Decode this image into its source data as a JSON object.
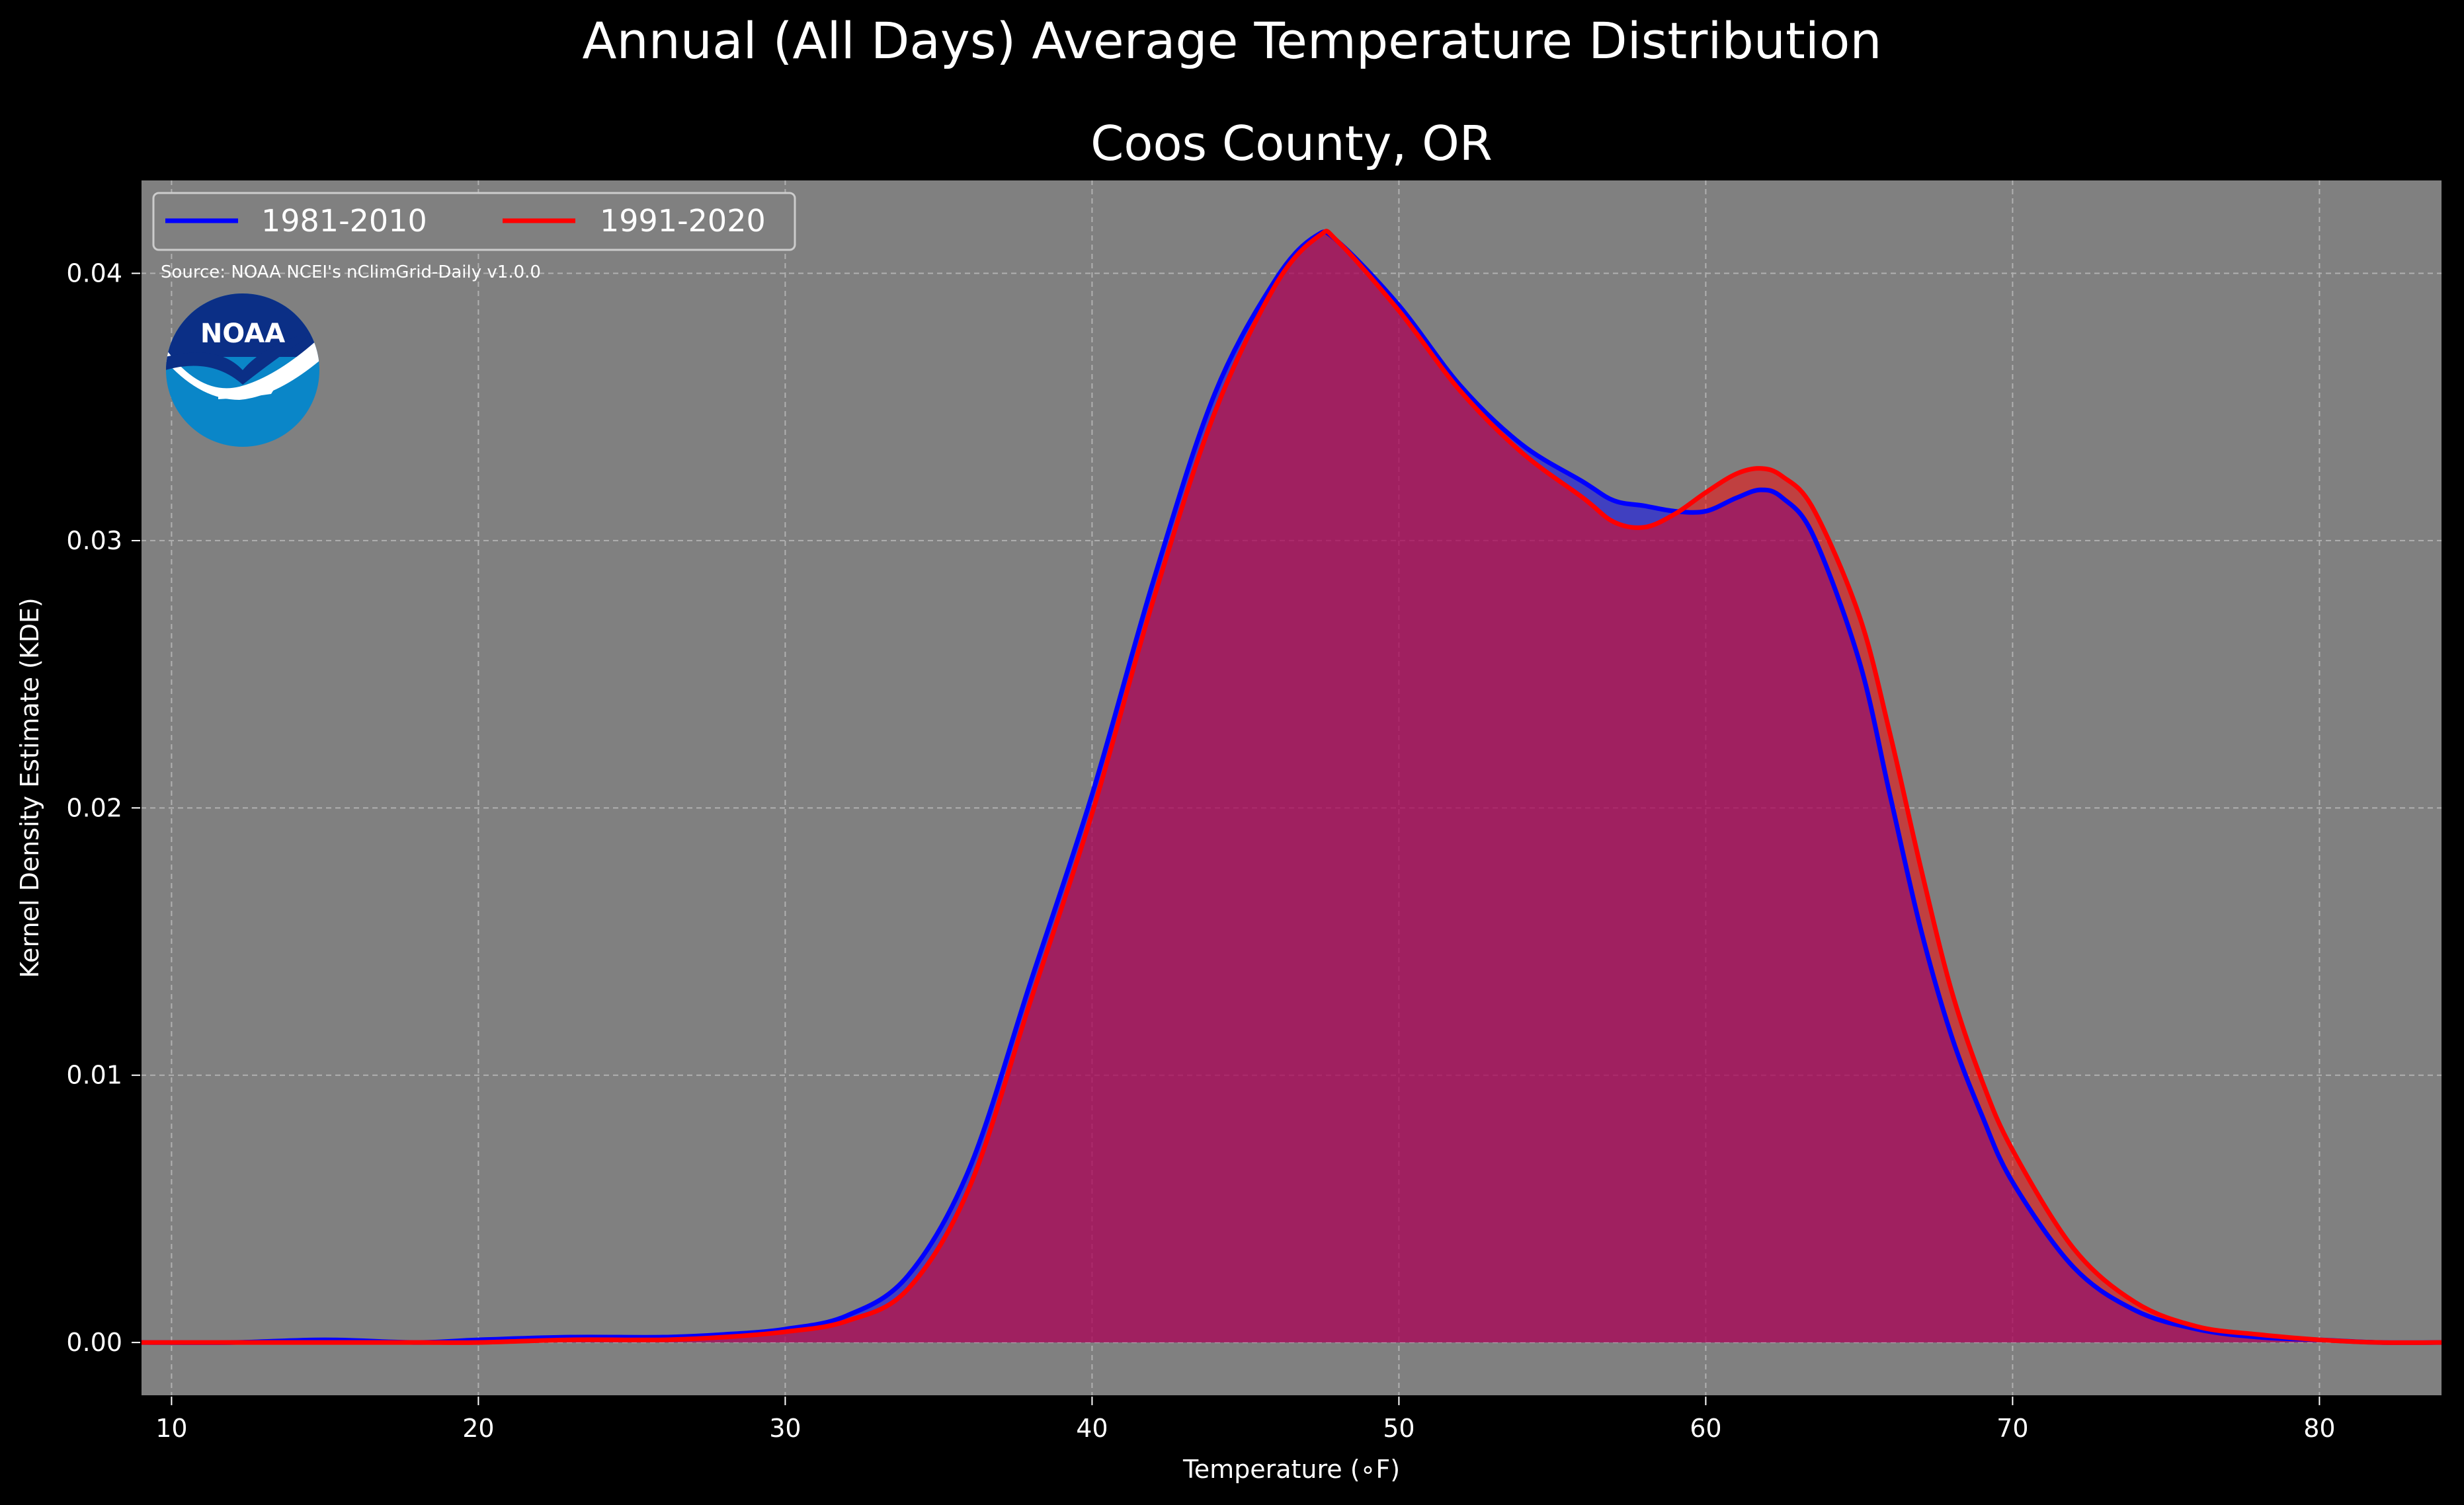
{
  "chart_data": {
    "type": "area",
    "title": "Annual (All Days) Average Temperature Distribution",
    "subtitle": "Coos County, OR",
    "xlabel": "Temperature (∘F)",
    "ylabel": "Kernel Density Estimate (KDE)",
    "xlim": [
      9,
      84
    ],
    "ylim": [
      -0.002,
      0.0435
    ],
    "xticks": [
      10,
      20,
      30,
      40,
      50,
      60,
      70,
      80
    ],
    "yticks": [
      0.0,
      0.01,
      0.02,
      0.03,
      0.04
    ],
    "ytick_labels": [
      "0.00",
      "0.01",
      "0.02",
      "0.03",
      "0.04"
    ],
    "grid": true,
    "legend_position": "top-left",
    "annotation": "Source: NOAA NCEI's nClimGrid-Daily v1.0.0",
    "logo_text": "NOAA",
    "series": [
      {
        "name": "1981-2010",
        "color": "#0000ff",
        "fill": "#0000ff",
        "x": [
          9,
          12,
          15,
          18,
          20,
          23,
          26,
          28,
          30,
          32,
          34,
          36,
          38,
          40,
          42,
          44,
          46,
          47.3,
          48,
          50,
          52,
          54,
          56,
          57,
          58,
          59,
          60,
          61,
          61.8,
          62.5,
          63.5,
          65,
          66,
          67,
          68,
          69,
          70,
          72,
          74,
          76,
          78,
          80,
          82,
          84
        ],
        "y": [
          0.0,
          0.0,
          0.0001,
          0.0,
          0.0001,
          0.0002,
          0.0002,
          0.0003,
          0.0005,
          0.001,
          0.0025,
          0.0065,
          0.0135,
          0.0205,
          0.0285,
          0.0355,
          0.0398,
          0.0414,
          0.0412,
          0.0388,
          0.0358,
          0.0336,
          0.0322,
          0.0315,
          0.0313,
          0.0311,
          0.0311,
          0.0316,
          0.0319,
          0.0316,
          0.0302,
          0.0255,
          0.0205,
          0.0155,
          0.0115,
          0.0085,
          0.006,
          0.0028,
          0.0012,
          0.0005,
          0.0002,
          0.0001,
          0.0,
          0.0
        ]
      },
      {
        "name": "1991-2020",
        "color": "#ff0000",
        "fill": "#ff0000",
        "x": [
          9,
          12,
          15,
          18,
          20,
          23,
          26,
          28,
          30,
          32,
          34,
          36,
          38,
          40,
          42,
          44,
          46,
          47.4,
          48,
          50,
          52,
          54,
          56,
          57,
          58,
          59,
          60,
          61,
          61.8,
          62.5,
          63.5,
          65,
          66,
          67,
          68,
          69,
          70,
          72,
          74,
          76,
          78,
          80,
          82,
          84
        ],
        "y": [
          0.0,
          0.0,
          0.0,
          0.0,
          0.0,
          0.0001,
          0.0001,
          0.0002,
          0.0004,
          0.0008,
          0.002,
          0.0058,
          0.0128,
          0.0198,
          0.0278,
          0.0348,
          0.0396,
          0.0414,
          0.0412,
          0.0386,
          0.0356,
          0.0333,
          0.0316,
          0.0307,
          0.0305,
          0.031,
          0.0318,
          0.0325,
          0.0327,
          0.0324,
          0.0312,
          0.0272,
          0.0228,
          0.0178,
          0.0132,
          0.0098,
          0.0072,
          0.0035,
          0.0015,
          0.0006,
          0.0003,
          0.0001,
          0.0,
          0.0
        ]
      }
    ]
  }
}
